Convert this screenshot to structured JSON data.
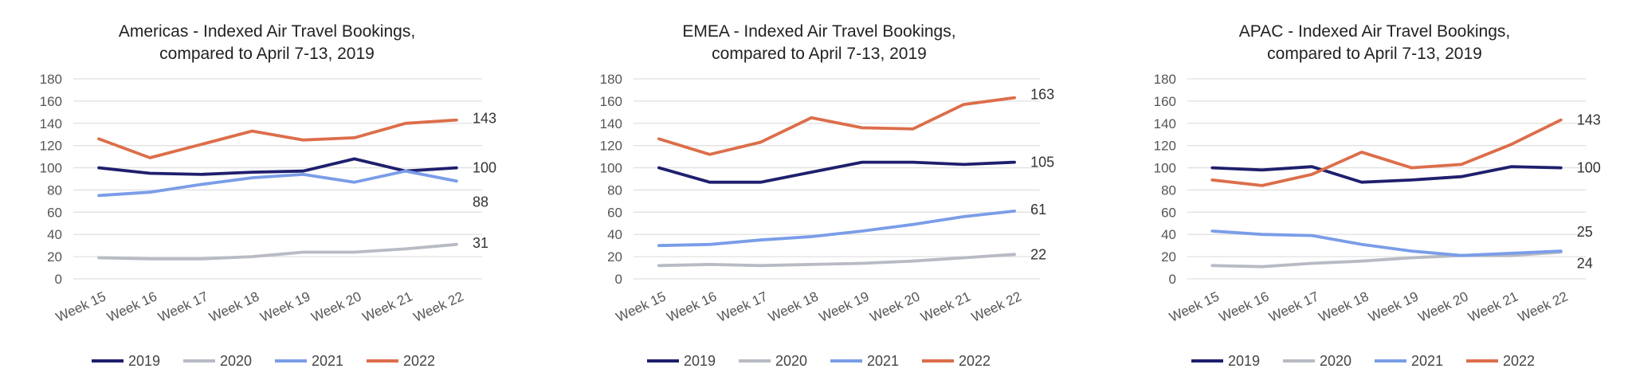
{
  "colors": {
    "2019": "#1f1f6e",
    "2020": "#b8bac4",
    "2021": "#7a9de8",
    "2022": "#dc6e4a",
    "grid": "#e1e1e1",
    "text": "#555555",
    "title": "#222222"
  },
  "chart_data": [
    {
      "type": "line",
      "title_lines": [
        "Americas - Indexed Air Travel Bookings,",
        "compared to April 7-13, 2019"
      ],
      "categories": [
        "Week 15",
        "Week 16",
        "Week 17",
        "Week 18",
        "Week 19",
        "Week 20",
        "Week 21",
        "Week 22"
      ],
      "ylim": [
        0,
        180
      ],
      "yticks": [
        0,
        20,
        40,
        60,
        80,
        100,
        120,
        140,
        160,
        180
      ],
      "grid": true,
      "legend": "bottom",
      "series": [
        {
          "name": "2019",
          "values": [
            100,
            95,
            94,
            96,
            97,
            108,
            97,
            100
          ],
          "end_label": "100"
        },
        {
          "name": "2020",
          "values": [
            19,
            18,
            18,
            20,
            24,
            24,
            27,
            31
          ],
          "end_label": "31"
        },
        {
          "name": "2021",
          "values": [
            75,
            78,
            85,
            91,
            94,
            87,
            97,
            88
          ],
          "end_label": "88"
        },
        {
          "name": "2022",
          "values": [
            126,
            109,
            121,
            133,
            125,
            127,
            140,
            143
          ],
          "end_label": "143"
        }
      ]
    },
    {
      "type": "line",
      "title_lines": [
        "EMEA - Indexed Air Travel Bookings,",
        "compared to April 7-13, 2019"
      ],
      "categories": [
        "Week 15",
        "Week 16",
        "Week 17",
        "Week 18",
        "Week 19",
        "Week 20",
        "Week 21",
        "Week 22"
      ],
      "ylim": [
        0,
        180
      ],
      "yticks": [
        0,
        20,
        40,
        60,
        80,
        100,
        120,
        140,
        160,
        180
      ],
      "grid": true,
      "legend": "bottom",
      "series": [
        {
          "name": "2019",
          "values": [
            100,
            87,
            87,
            96,
            105,
            105,
            103,
            105
          ],
          "end_label": "105"
        },
        {
          "name": "2020",
          "values": [
            12,
            13,
            12,
            13,
            14,
            16,
            19,
            22
          ],
          "end_label": "22"
        },
        {
          "name": "2021",
          "values": [
            30,
            31,
            35,
            38,
            43,
            49,
            56,
            61
          ],
          "end_label": "61"
        },
        {
          "name": "2022",
          "values": [
            126,
            112,
            123,
            145,
            136,
            135,
            157,
            163
          ],
          "end_label": "163"
        }
      ]
    },
    {
      "type": "line",
      "title_lines": [
        "APAC - Indexed Air Travel Bookings,",
        "compared to April 7-13, 2019"
      ],
      "categories": [
        "Week 15",
        "Week 16",
        "Week 17",
        "Week 18",
        "Week 19",
        "Week 20",
        "Week 21",
        "Week 22"
      ],
      "ylim": [
        0,
        180
      ],
      "yticks": [
        0,
        20,
        40,
        60,
        80,
        100,
        120,
        140,
        160,
        180
      ],
      "grid": true,
      "legend": "bottom",
      "series": [
        {
          "name": "2019",
          "values": [
            100,
            98,
            101,
            87,
            89,
            92,
            101,
            100
          ],
          "end_label": "100"
        },
        {
          "name": "2020",
          "values": [
            12,
            11,
            14,
            16,
            19,
            21,
            21,
            24
          ],
          "end_label": "24"
        },
        {
          "name": "2021",
          "values": [
            43,
            40,
            39,
            31,
            25,
            21,
            23,
            25
          ],
          "end_label": "25"
        },
        {
          "name": "2022",
          "values": [
            89,
            84,
            94,
            114,
            100,
            103,
            121,
            143
          ],
          "end_label": "143"
        }
      ]
    }
  ]
}
